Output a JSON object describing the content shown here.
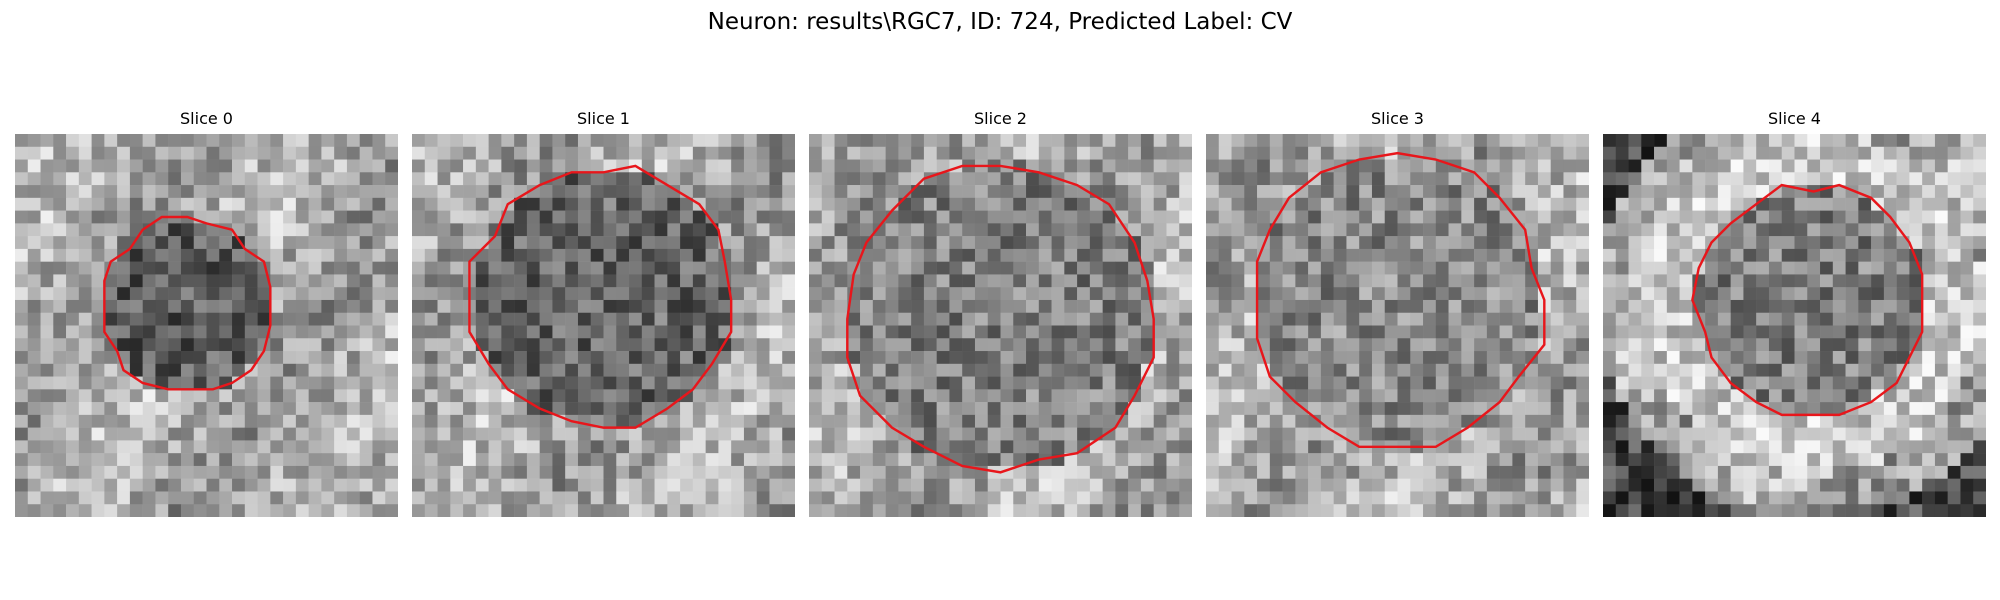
{
  "figure": {
    "title": "Neuron: results\\RGC7, ID: 724, Predicted Label: CV"
  },
  "panels": [
    {
      "title": "Slice 0"
    },
    {
      "title": "Slice 1"
    },
    {
      "title": "Slice 2"
    },
    {
      "title": "Slice 3"
    },
    {
      "title": "Slice 4"
    }
  ],
  "colors": {
    "contour": "#e8161b",
    "background": "#ffffff"
  }
}
